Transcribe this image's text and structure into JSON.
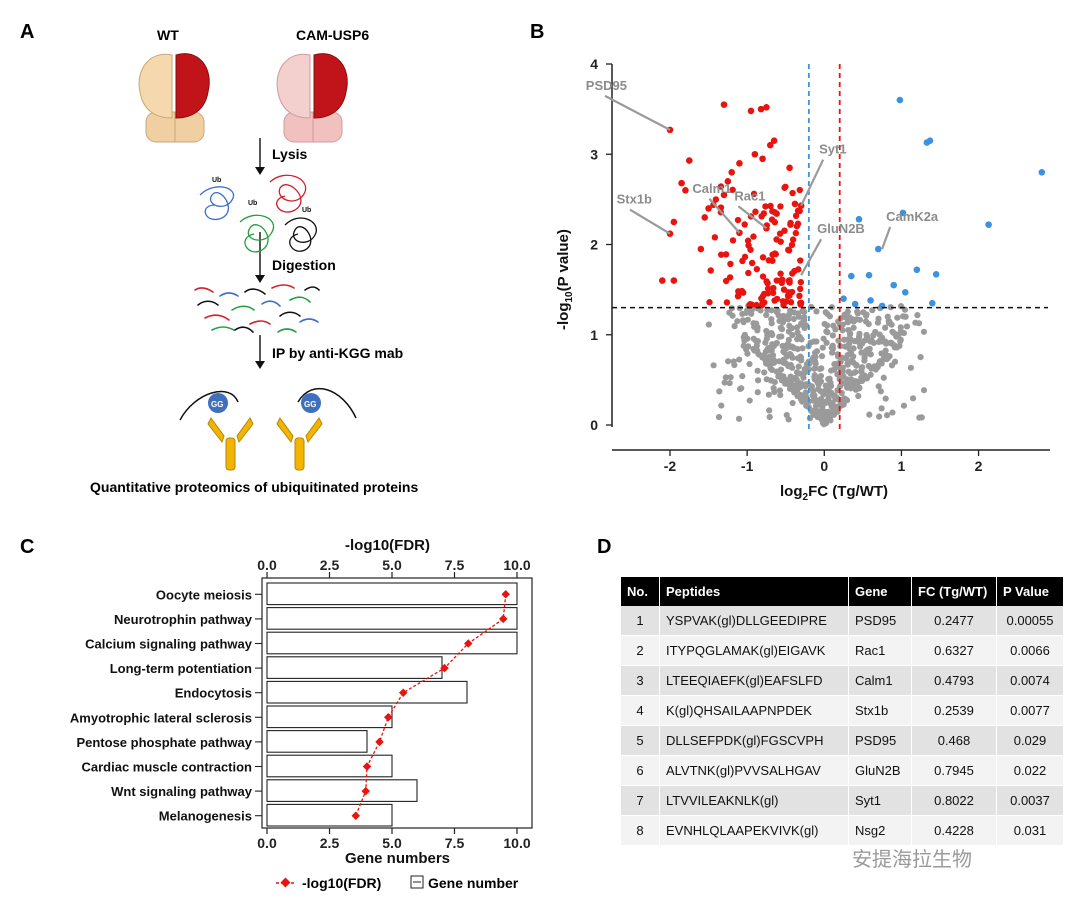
{
  "panel_labels": [
    "A",
    "B",
    "C",
    "D"
  ],
  "panelA": {
    "wt_label": "WT",
    "cam_label": "CAM-USP6",
    "step1": "Lysis",
    "step2": "Digestion",
    "step3": "IP by anti-KGG mab",
    "ub_label": "Ub",
    "gg_label": "GG",
    "caption": "Quantitative proteomics of ubiquitinated proteins",
    "colors": {
      "brain_wt": "#f3d3a4",
      "brain_cam": "#f3c4c2",
      "hemisphere": "#c0141a",
      "antibody": "#f2b400",
      "gg": "#3f6fbf"
    }
  },
  "chart_data": [
    {
      "panel": "B",
      "type": "scatter",
      "xlabel": "log2FC (Tg/WT)",
      "ylabel": "-log10(P value)",
      "xlim": [
        -2.7,
        2.9
      ],
      "ylim": [
        0,
        4
      ],
      "x_ticks": [
        "-2",
        "-1",
        "0",
        "1",
        "2"
      ],
      "y_ticks": [
        "0",
        "1",
        "2",
        "3",
        "4"
      ],
      "threshold_p": 1.3,
      "fc_thresholds": [
        -0.2,
        0.2
      ],
      "colors": {
        "down": "#e8140f",
        "up": "#3d92e0",
        "ns": "#9a9a9a",
        "neg_line": "#3d92e0",
        "pos_line": "#e8140f"
      },
      "labels": [
        {
          "name": "PSD95",
          "x": -2.0,
          "y": 3.27
        },
        {
          "name": "Stx1b",
          "x": -2.0,
          "y": 2.12
        },
        {
          "name": "Calm1",
          "x": -1.1,
          "y": 2.13
        },
        {
          "name": "Rac1",
          "x": -0.75,
          "y": 2.18
        },
        {
          "name": "Syt1",
          "x": -0.3,
          "y": 2.43
        },
        {
          "name": "GluN2B",
          "x": -0.3,
          "y": 1.66
        },
        {
          "name": "CamK2a",
          "x": 0.75,
          "y": 1.95
        }
      ],
      "up_points": [
        [
          0.98,
          3.6
        ],
        [
          1.33,
          3.13
        ],
        [
          1.37,
          3.15
        ],
        [
          2.82,
          2.8
        ],
        [
          0.45,
          2.28
        ],
        [
          1.02,
          2.35
        ],
        [
          2.13,
          2.22
        ],
        [
          0.7,
          1.95
        ],
        [
          0.35,
          1.65
        ],
        [
          0.58,
          1.66
        ],
        [
          1.2,
          1.72
        ],
        [
          1.45,
          1.67
        ],
        [
          0.9,
          1.55
        ],
        [
          1.05,
          1.47
        ],
        [
          0.25,
          1.4
        ],
        [
          0.6,
          1.38
        ],
        [
          0.75,
          1.32
        ],
        [
          1.4,
          1.35
        ],
        [
          0.4,
          1.34
        ]
      ],
      "down_points": [
        [
          -2.0,
          3.27
        ],
        [
          -1.3,
          3.55
        ],
        [
          -0.95,
          3.48
        ],
        [
          -0.82,
          3.5
        ],
        [
          -0.75,
          3.52
        ],
        [
          -1.75,
          2.93
        ],
        [
          -1.85,
          2.68
        ],
        [
          -2.0,
          2.12
        ],
        [
          -1.95,
          2.25
        ],
        [
          -1.8,
          2.6
        ],
        [
          -1.55,
          2.3
        ],
        [
          -1.5,
          2.4
        ],
        [
          -1.6,
          1.95
        ],
        [
          -2.1,
          1.6
        ],
        [
          -1.95,
          1.6
        ],
        [
          -1.3,
          2.55
        ],
        [
          -1.25,
          2.7
        ],
        [
          -1.2,
          2.8
        ],
        [
          -1.1,
          2.9
        ],
        [
          -0.9,
          3.0
        ],
        [
          -0.7,
          3.1
        ],
        [
          -0.65,
          3.15
        ],
        [
          -0.8,
          2.95
        ],
        [
          -0.45,
          2.85
        ],
        [
          -0.38,
          2.45
        ],
        [
          -0.3,
          2.43
        ],
        [
          -1.1,
          2.13
        ],
        [
          -0.75,
          2.18
        ]
      ],
      "ns_points_note": "ns"
    },
    {
      "panel": "C",
      "type": "bar",
      "orientation": "horizontal",
      "top_axis_label": "-log10(FDR)",
      "bottom_axis_label": "Gene numbers",
      "xlim": [
        0,
        10
      ],
      "ticks": [
        "0.0",
        "2.5",
        "5.0",
        "7.5",
        "10.0"
      ],
      "categories": [
        "Oocyte meiosis",
        "Neurotrophin pathway",
        "Calcium signaling pathway",
        "Long-term potentiation",
        "Endocytosis",
        "Amyotrophic lateral sclerosis",
        "Pentose phosphate pathway",
        "Cardiac muscle contraction",
        "Wnt signaling pathway",
        "Melanogenesis"
      ],
      "series": [
        {
          "name": "Gene number",
          "type": "bar",
          "values": [
            10,
            10,
            10,
            7,
            8,
            5,
            4,
            5,
            6,
            5
          ]
        },
        {
          "name": "-log10(FDR)",
          "type": "line",
          "values": [
            9.55,
            9.45,
            8.05,
            7.1,
            5.45,
            4.85,
            4.5,
            4.0,
            3.95,
            3.55
          ]
        }
      ],
      "colors": {
        "line": "#e8140f",
        "bar_edge": "#222222",
        "bar_fill": "#ffffff"
      },
      "legend": [
        {
          "name": "-log10(FDR)",
          "kind": "line"
        },
        {
          "name": "Gene number",
          "kind": "bar"
        }
      ]
    }
  ],
  "table": {
    "headers": [
      "No.",
      "Peptides",
      "Gene",
      "FC (Tg/WT)",
      "P Value"
    ],
    "rows": [
      [
        "1",
        "YSPVAK(gl)DLLGEEDIPRE",
        "PSD95",
        "0.2477",
        "0.00055"
      ],
      [
        "2",
        "ITYPQGLAMAK(gl)EIGAVK",
        "Rac1",
        "0.6327",
        "0.0066"
      ],
      [
        "3",
        "LTEEQIAEFK(gl)EAFSLFD",
        "Calm1",
        "0.4793",
        "0.0074"
      ],
      [
        "4",
        "K(gl)QHSAILAAPNPDEK",
        "Stx1b",
        "0.2539",
        "0.0077"
      ],
      [
        "5",
        "DLLSEFPDK(gl)FGSCVPH",
        "PSD95",
        "0.468",
        "0.029"
      ],
      [
        "6",
        "ALVTNK(gl)PVVSALHGAV",
        "GluN2B",
        "0.7945",
        "0.022"
      ],
      [
        "7",
        "LTVVILEAKNLK(gl)",
        "Syt1",
        "0.8022",
        "0.0037"
      ],
      [
        "8",
        "EVNHLQLAAPEKVIVK(gl)",
        "Nsg2",
        "0.4228",
        "0.031"
      ]
    ]
  },
  "watermark": "安提海拉生物"
}
